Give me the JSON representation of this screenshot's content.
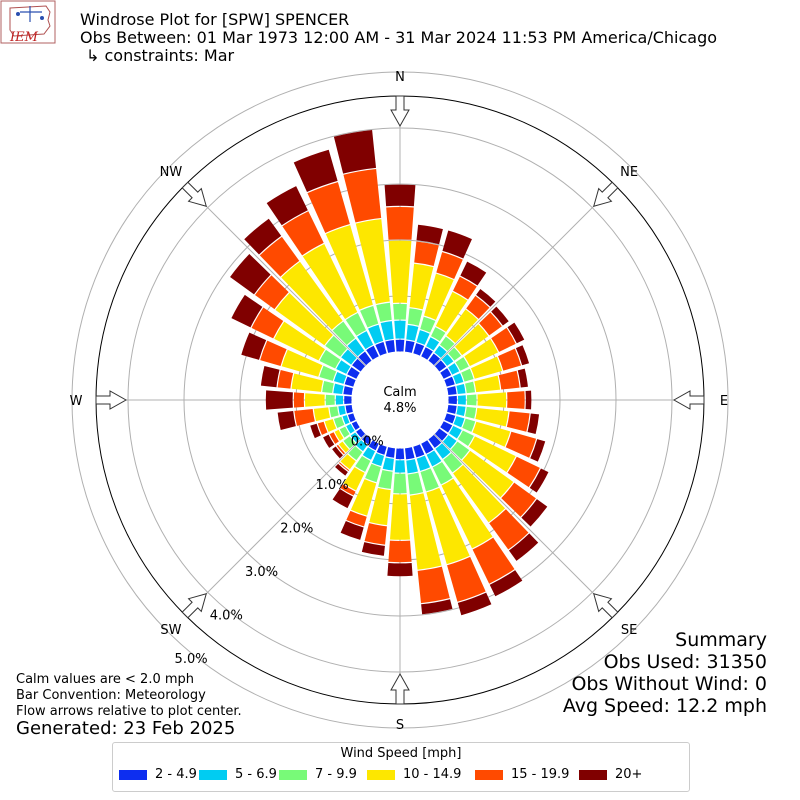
{
  "header": {
    "logo_text": "IEM",
    "title_line1": "Windrose Plot for [SPW] SPENCER",
    "title_line2": "Obs Between: 01 Mar 1973 12:00 AM - 31 Mar 2024 11:53 PM America/Chicago",
    "title_line3": "↳ constraints: Mar"
  },
  "summary": {
    "heading": "Summary",
    "obs_used": "Obs Used: 31350",
    "obs_without_wind": "Obs Without Wind: 0",
    "avg_speed": "Avg Speed: 12.2 mph"
  },
  "footer": {
    "calm_note": "Calm values are < 2.0 mph",
    "bar_convention": "Bar Convention: Meteorology",
    "flow_note": "Flow arrows relative to plot center.",
    "generated": "Generated: 23 Feb 2025"
  },
  "chart_data": {
    "type": "windrose",
    "calm_label": "Calm",
    "calm_value": "4.8%",
    "directions": [
      "N",
      "NE",
      "E",
      "SE",
      "S",
      "SW",
      "W",
      "NW"
    ],
    "radial_ticks": [
      "0.0%",
      "1.0%",
      "2.0%",
      "3.0%",
      "4.0%",
      "5.0%"
    ],
    "radial_max": 5.5,
    "legend_title": "Wind Speed [mph]",
    "bins": [
      "2 - 4.9",
      "5 - 6.9",
      "7 - 9.9",
      "10 - 14.9",
      "15 - 19.9",
      "20+"
    ],
    "colors": [
      "#0d2ef0",
      "#00ccf2",
      "#78fa78",
      "#fde700",
      "#ff4a00",
      "#800000"
    ],
    "sectors_deg": [
      0,
      10,
      20,
      30,
      40,
      50,
      60,
      70,
      80,
      90,
      100,
      110,
      120,
      130,
      140,
      150,
      160,
      170,
      180,
      190,
      200,
      210,
      220,
      230,
      240,
      250,
      260,
      270,
      280,
      290,
      300,
      310,
      320,
      330,
      340,
      350
    ],
    "cumulative_pct": [
      [
        0.23,
        0.57,
        0.87,
        2.0,
        2.6,
        3.0
      ],
      [
        0.22,
        0.5,
        0.8,
        1.6,
        2.0,
        2.3
      ],
      [
        0.21,
        0.45,
        0.7,
        1.5,
        1.9,
        2.3
      ],
      [
        0.2,
        0.4,
        0.6,
        1.3,
        1.6,
        1.9
      ],
      [
        0.18,
        0.35,
        0.55,
        1.15,
        1.45,
        1.6
      ],
      [
        0.17,
        0.33,
        0.5,
        1.1,
        1.4,
        1.55
      ],
      [
        0.17,
        0.33,
        0.52,
        1.1,
        1.45,
        1.62
      ],
      [
        0.17,
        0.33,
        0.52,
        1.05,
        1.4,
        1.55
      ],
      [
        0.17,
        0.33,
        0.5,
        0.95,
        1.3,
        1.45
      ],
      [
        0.17,
        0.33,
        0.52,
        1.05,
        1.38,
        1.5
      ],
      [
        0.17,
        0.33,
        0.52,
        1.1,
        1.48,
        1.65
      ],
      [
        0.18,
        0.35,
        0.55,
        1.2,
        1.68,
        1.85
      ],
      [
        0.19,
        0.38,
        0.62,
        1.45,
        1.93,
        2.1
      ],
      [
        0.2,
        0.4,
        0.68,
        1.65,
        2.15,
        2.4
      ],
      [
        0.21,
        0.45,
        0.75,
        1.85,
        2.45,
        2.7
      ],
      [
        0.22,
        0.47,
        0.83,
        2.1,
        2.8,
        3.05
      ],
      [
        0.22,
        0.47,
        0.85,
        2.2,
        2.9,
        3.15
      ],
      [
        0.22,
        0.47,
        0.85,
        2.2,
        2.8,
        3.0
      ],
      [
        0.21,
        0.45,
        0.82,
        1.65,
        2.05,
        2.3
      ],
      [
        0.19,
        0.42,
        0.75,
        1.4,
        1.75,
        1.95
      ],
      [
        0.17,
        0.38,
        0.68,
        1.3,
        1.5,
        1.75
      ],
      [
        0.15,
        0.34,
        0.58,
        0.95,
        1.05,
        1.3
      ],
      [
        0.13,
        0.28,
        0.48,
        0.68,
        0.72,
        0.82
      ],
      [
        0.12,
        0.24,
        0.4,
        0.5,
        0.55,
        0.65
      ],
      [
        0.11,
        0.22,
        0.35,
        0.45,
        0.55,
        0.68
      ],
      [
        0.12,
        0.22,
        0.38,
        0.55,
        0.68,
        0.82
      ],
      [
        0.13,
        0.26,
        0.42,
        0.7,
        1.05,
        1.35
      ],
      [
        0.15,
        0.3,
        0.48,
        0.85,
        1.05,
        1.55
      ],
      [
        0.17,
        0.35,
        0.55,
        1.1,
        1.35,
        1.65
      ],
      [
        0.18,
        0.38,
        0.65,
        1.35,
        1.75,
        2.1
      ],
      [
        0.2,
        0.42,
        0.75,
        1.65,
        2.1,
        2.5
      ],
      [
        0.21,
        0.45,
        0.8,
        1.9,
        2.35,
        2.9
      ],
      [
        0.22,
        0.5,
        0.88,
        2.2,
        2.75,
        3.15
      ],
      [
        0.23,
        0.52,
        0.88,
        2.25,
        2.9,
        3.4
      ],
      [
        0.23,
        0.55,
        0.9,
        2.4,
        3.2,
        3.8
      ],
      [
        0.23,
        0.57,
        0.9,
        2.4,
        3.3,
        4.0
      ]
    ]
  }
}
